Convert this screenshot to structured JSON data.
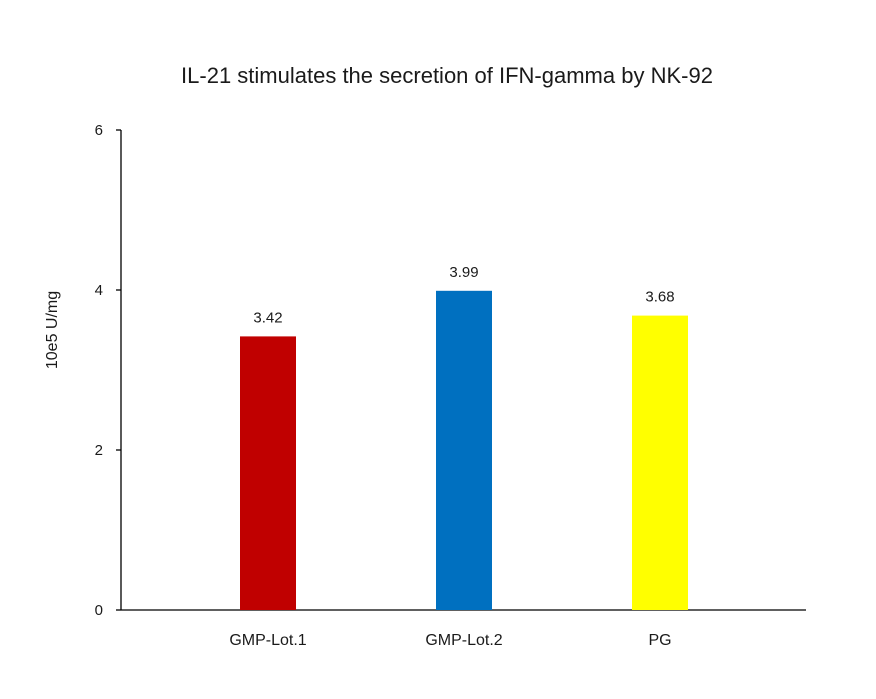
{
  "chart_data": {
    "type": "bar",
    "title": "IL-21  stimulates the secretion of IFN-gamma by NK-92",
    "xlabel": "",
    "ylabel": "10e5 U/mg",
    "ylim": [
      0,
      6
    ],
    "yticks": [
      0,
      2,
      4,
      6
    ],
    "categories": [
      "GMP-Lot.1",
      "GMP-Lot.2",
      "PG"
    ],
    "values": [
      3.42,
      3.99,
      3.68
    ],
    "data_labels": [
      "3.42",
      "3.99",
      "3.68"
    ],
    "colors": [
      "#C00000",
      "#0070C0",
      "#FFFF00"
    ],
    "grid": false,
    "legend": "none"
  }
}
